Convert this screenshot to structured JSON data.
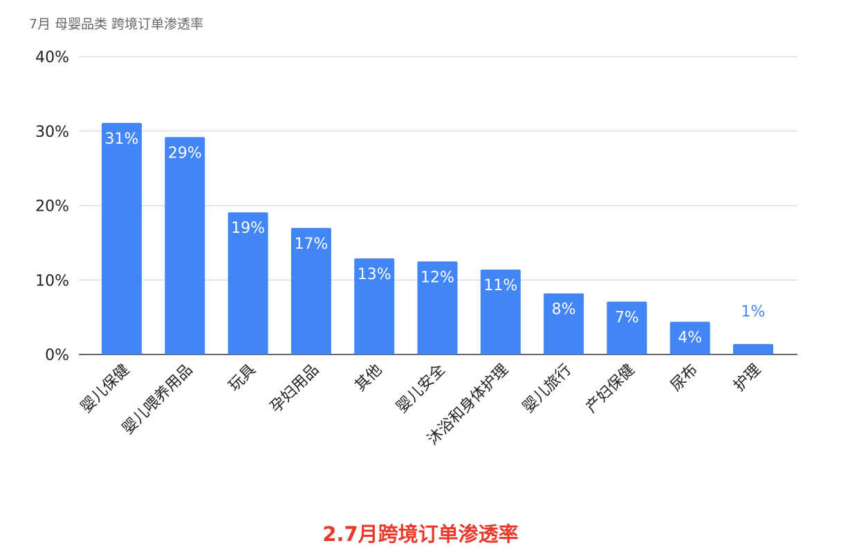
{
  "chart_data": {
    "type": "bar",
    "title": "7月 母婴品类 跨境订单渗透率",
    "categories": [
      "婴儿保健",
      "婴儿喂养用品",
      "玩具",
      "孕妇用品",
      "其他",
      "婴儿安全",
      "沐浴和身体护理",
      "婴儿旅行",
      "产妇保健",
      "尿布",
      "护理"
    ],
    "values": [
      31.1,
      29.2,
      19.1,
      17.0,
      12.9,
      12.5,
      11.4,
      8.2,
      7.1,
      4.4,
      1.4
    ],
    "data_labels": [
      "31%",
      "29%",
      "19%",
      "17%",
      "13%",
      "12%",
      "11%",
      "8%",
      "7%",
      "4%",
      "1%"
    ],
    "ylim": [
      0,
      40
    ],
    "yticks": [
      0,
      10,
      20,
      30,
      40
    ],
    "ytick_labels": [
      "0%",
      "10%",
      "20%",
      "30%",
      "40%"
    ],
    "grid": true,
    "legend": "none",
    "bar_color": "#4285f4",
    "label_color_inside": "#ffffff",
    "label_color_outside": "#4285f4"
  },
  "caption": "2.7月跨境订单渗透率"
}
